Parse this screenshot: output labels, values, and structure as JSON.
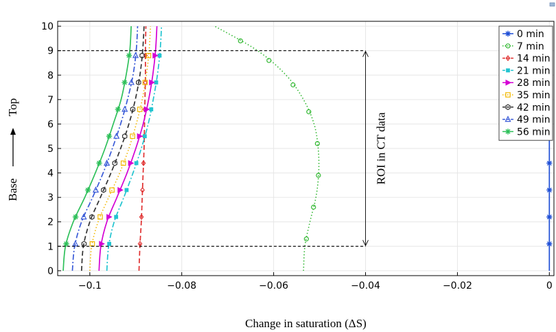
{
  "chart_data": {
    "type": "line",
    "xlabel": "Change in saturation (ΔS)",
    "ylabel_base": "Base",
    "ylabel_top": "Top",
    "xlim": [
      -0.107,
      0.001
    ],
    "ylim": [
      -0.2,
      10.2
    ],
    "xticks": [
      -0.1,
      -0.08,
      -0.06,
      -0.04,
      -0.02,
      0
    ],
    "xtick_labels": [
      "−0.1",
      "−0.08",
      "−0.06",
      "−0.04",
      "−0.02",
      "0"
    ],
    "yticks": [
      0,
      1,
      2,
      3,
      4,
      5,
      6,
      7,
      8,
      9,
      10
    ],
    "grid": true,
    "legend_position": "top-right",
    "annotation": {
      "text": "ROI in CT data",
      "y_range": [
        1,
        9
      ],
      "x": -0.04
    },
    "series": [
      {
        "name": "0 min",
        "color": "#1f4fd6",
        "dash": "solid",
        "marker": "star",
        "x": [
          0,
          0,
          0,
          0,
          0,
          0,
          0,
          0,
          0,
          0,
          0
        ],
        "y": [
          0,
          1,
          2,
          3,
          4,
          5,
          6,
          7,
          8,
          9,
          10
        ],
        "marker_y": [
          1.1,
          2.2,
          3.3,
          4.4,
          5.5,
          6.6,
          7.7,
          8.8
        ]
      },
      {
        "name": "7 min",
        "color": "#33b833",
        "dash": "dotted",
        "marker": "circle",
        "x": [
          -0.0535,
          -0.0532,
          -0.0521,
          -0.0508,
          -0.0502,
          -0.0503,
          -0.0512,
          -0.0535,
          -0.0573,
          -0.0635,
          -0.0728
        ],
        "y": [
          0,
          1,
          2,
          3,
          4,
          5,
          6,
          7,
          8,
          9,
          10
        ],
        "marker_y": [
          1.3,
          2.6,
          3.9,
          5.2,
          6.5,
          7.6,
          8.6,
          9.4
        ]
      },
      {
        "name": "14 min",
        "color": "#e03030",
        "dash": "dashed",
        "marker": "diamond",
        "x": [
          -0.0893,
          -0.0891,
          -0.0888,
          -0.0886,
          -0.0884,
          -0.0882,
          -0.0881,
          -0.088,
          -0.0879,
          -0.0879,
          -0.0878
        ],
        "y": [
          0,
          1,
          2,
          3,
          4,
          5,
          6,
          7,
          8,
          9,
          10
        ],
        "marker_y": [
          1.1,
          2.2,
          3.3,
          4.4,
          5.5,
          6.6,
          7.7,
          8.8
        ]
      },
      {
        "name": "21 min",
        "color": "#22c4d0",
        "dash": "dashdot",
        "marker": "square-filled",
        "x": [
          -0.0963,
          -0.0959,
          -0.0947,
          -0.0926,
          -0.0906,
          -0.0888,
          -0.0873,
          -0.0862,
          -0.0853,
          -0.0847,
          -0.0844
        ],
        "y": [
          0,
          1,
          2,
          3,
          4,
          5,
          6,
          7,
          8,
          9,
          10
        ],
        "marker_y": [
          1.1,
          2.2,
          3.3,
          4.4,
          5.5,
          6.6,
          7.7,
          8.8
        ]
      },
      {
        "name": "28 min",
        "color": "#d400d4",
        "dash": "solid",
        "marker": "triangle-right",
        "x": [
          -0.098,
          -0.0976,
          -0.0963,
          -0.0941,
          -0.0919,
          -0.09,
          -0.0884,
          -0.0872,
          -0.0863,
          -0.0857,
          -0.0854
        ],
        "y": [
          0,
          1,
          2,
          3,
          4,
          5,
          6,
          7,
          8,
          9,
          10
        ],
        "marker_y": [
          1.1,
          2.2,
          3.3,
          4.4,
          5.5,
          6.6,
          7.7,
          8.8
        ]
      },
      {
        "name": "35 min",
        "color": "#f2b800",
        "dash": "dotted",
        "marker": "square",
        "x": [
          -0.1,
          -0.0996,
          -0.0982,
          -0.0959,
          -0.0935,
          -0.0915,
          -0.0899,
          -0.0886,
          -0.0877,
          -0.0871,
          -0.0868
        ],
        "y": [
          0,
          1,
          2,
          3,
          4,
          5,
          6,
          7,
          8,
          9,
          10
        ],
        "marker_y": [
          1.1,
          2.2,
          3.3,
          4.4,
          5.5,
          6.6,
          7.7,
          8.8
        ]
      },
      {
        "name": "42 min",
        "color": "#333333",
        "dash": "dashed",
        "marker": "hexagon",
        "x": [
          -0.1018,
          -0.1014,
          -0.1,
          -0.0977,
          -0.0954,
          -0.0933,
          -0.0915,
          -0.0901,
          -0.0891,
          -0.0885,
          -0.0882
        ],
        "y": [
          0,
          1,
          2,
          3,
          4,
          5,
          6,
          7,
          8,
          9,
          10
        ],
        "marker_y": [
          1.1,
          2.2,
          3.3,
          4.4,
          5.5,
          6.6,
          7.7,
          8.8
        ]
      },
      {
        "name": "49 min",
        "color": "#3a5bd8",
        "dash": "dashdot",
        "marker": "triangle-up",
        "x": [
          -0.1038,
          -0.1033,
          -0.1018,
          -0.0994,
          -0.0971,
          -0.0951,
          -0.0933,
          -0.0918,
          -0.0906,
          -0.0899,
          -0.0896
        ],
        "y": [
          0,
          1,
          2,
          3,
          4,
          5,
          6,
          7,
          8,
          9,
          10
        ],
        "marker_y": [
          1.1,
          2.2,
          3.3,
          4.4,
          5.5,
          6.6,
          7.7,
          8.8
        ]
      },
      {
        "name": "56 min",
        "color": "#2ec05a",
        "dash": "solid",
        "marker": "star",
        "x": [
          -0.1058,
          -0.1053,
          -0.1036,
          -0.1011,
          -0.0988,
          -0.0967,
          -0.0949,
          -0.0932,
          -0.0921,
          -0.0913,
          -0.091
        ],
        "y": [
          0,
          1,
          2,
          3,
          4,
          5,
          6,
          7,
          8,
          9,
          10
        ],
        "marker_y": [
          1.1,
          2.2,
          3.3,
          4.4,
          5.5,
          6.6,
          7.7,
          8.8
        ]
      }
    ]
  }
}
